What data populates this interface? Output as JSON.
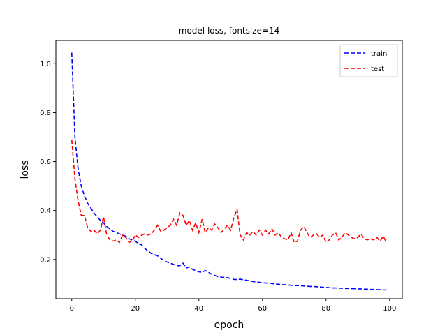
{
  "chart_data": {
    "type": "line",
    "title": "model loss, fontsize=14",
    "xlabel": "epoch",
    "ylabel": "loss",
    "xlim": [
      -5,
      104
    ],
    "ylim": [
      0.04,
      1.095
    ],
    "xticks": [
      0,
      20,
      40,
      60,
      80,
      100
    ],
    "yticks": [
      0.2,
      0.4,
      0.6,
      0.8,
      1.0
    ],
    "xtick_labels": [
      "0",
      "20",
      "40",
      "60",
      "80",
      "100"
    ],
    "ytick_labels": [
      "0.2",
      "0.4",
      "0.6",
      "0.8",
      "1.0"
    ],
    "grid": false,
    "legend_position": "upper right",
    "series": [
      {
        "name": "train",
        "color": "#0000ff",
        "linestyle": "dashed",
        "x": [
          0,
          1,
          2,
          3,
          4,
          5,
          6,
          7,
          8,
          9,
          10,
          11,
          12,
          13,
          14,
          15,
          16,
          17,
          18,
          19,
          20,
          21,
          22,
          23,
          24,
          25,
          26,
          27,
          28,
          29,
          30,
          31,
          32,
          33,
          34,
          35,
          36,
          37,
          38,
          39,
          40,
          41,
          42,
          43,
          44,
          45,
          46,
          47,
          48,
          49,
          50,
          51,
          52,
          53,
          54,
          55,
          56,
          57,
          58,
          59,
          60,
          61,
          62,
          63,
          64,
          65,
          66,
          67,
          68,
          69,
          70,
          71,
          72,
          73,
          74,
          75,
          76,
          77,
          78,
          79,
          80,
          81,
          82,
          83,
          84,
          85,
          86,
          87,
          88,
          89,
          90,
          91,
          92,
          93,
          94,
          95,
          96,
          97,
          98,
          99
        ],
        "values": [
          1.045,
          0.7,
          0.57,
          0.5,
          0.46,
          0.43,
          0.41,
          0.39,
          0.375,
          0.36,
          0.35,
          0.335,
          0.325,
          0.315,
          0.31,
          0.305,
          0.3,
          0.295,
          0.285,
          0.28,
          0.275,
          0.265,
          0.26,
          0.245,
          0.235,
          0.225,
          0.22,
          0.215,
          0.205,
          0.195,
          0.19,
          0.185,
          0.18,
          0.175,
          0.175,
          0.185,
          0.165,
          0.17,
          0.16,
          0.155,
          0.15,
          0.148,
          0.155,
          0.148,
          0.14,
          0.135,
          0.13,
          0.128,
          0.127,
          0.126,
          0.122,
          0.119,
          0.118,
          0.12,
          0.117,
          0.115,
          0.113,
          0.11,
          0.109,
          0.107,
          0.105,
          0.104,
          0.104,
          0.102,
          0.1,
          0.099,
          0.098,
          0.097,
          0.096,
          0.095,
          0.093,
          0.094,
          0.093,
          0.092,
          0.091,
          0.09,
          0.09,
          0.089,
          0.088,
          0.087,
          0.086,
          0.085,
          0.084,
          0.084,
          0.083,
          0.083,
          0.082,
          0.082,
          0.081,
          0.081,
          0.08,
          0.08,
          0.079,
          0.079,
          0.078,
          0.078,
          0.077,
          0.077,
          0.076,
          0.076
        ]
      },
      {
        "name": "test",
        "color": "#ff0000",
        "linestyle": "dashed",
        "x": [
          0,
          1,
          2,
          3,
          4,
          5,
          6,
          7,
          8,
          9,
          10,
          11,
          12,
          13,
          14,
          15,
          16,
          17,
          18,
          19,
          20,
          21,
          22,
          23,
          24,
          25,
          26,
          27,
          28,
          29,
          30,
          31,
          32,
          33,
          34,
          35,
          36,
          37,
          38,
          39,
          40,
          41,
          42,
          43,
          44,
          45,
          46,
          47,
          48,
          49,
          50,
          51,
          52,
          53,
          54,
          55,
          56,
          57,
          58,
          59,
          60,
          61,
          62,
          63,
          64,
          65,
          66,
          67,
          68,
          69,
          70,
          71,
          72,
          73,
          74,
          75,
          76,
          77,
          78,
          79,
          80,
          81,
          82,
          83,
          84,
          85,
          86,
          87,
          88,
          89,
          90,
          91,
          92,
          93,
          94,
          95,
          96,
          97,
          98,
          99
        ],
        "values": [
          0.69,
          0.53,
          0.44,
          0.38,
          0.38,
          0.33,
          0.315,
          0.32,
          0.305,
          0.32,
          0.375,
          0.3,
          0.28,
          0.275,
          0.28,
          0.27,
          0.3,
          0.29,
          0.27,
          0.275,
          0.3,
          0.29,
          0.3,
          0.305,
          0.3,
          0.305,
          0.32,
          0.34,
          0.315,
          0.32,
          0.33,
          0.34,
          0.365,
          0.34,
          0.39,
          0.38,
          0.34,
          0.36,
          0.32,
          0.35,
          0.31,
          0.365,
          0.31,
          0.33,
          0.32,
          0.345,
          0.33,
          0.31,
          0.325,
          0.34,
          0.32,
          0.37,
          0.405,
          0.3,
          0.28,
          0.31,
          0.3,
          0.315,
          0.3,
          0.32,
          0.3,
          0.32,
          0.305,
          0.325,
          0.3,
          0.31,
          0.29,
          0.285,
          0.28,
          0.31,
          0.27,
          0.275,
          0.32,
          0.335,
          0.31,
          0.29,
          0.3,
          0.305,
          0.29,
          0.3,
          0.27,
          0.28,
          0.3,
          0.31,
          0.28,
          0.29,
          0.31,
          0.3,
          0.29,
          0.285,
          0.29,
          0.305,
          0.285,
          0.28,
          0.285,
          0.28,
          0.29,
          0.275,
          0.295,
          0.27
        ]
      }
    ]
  }
}
